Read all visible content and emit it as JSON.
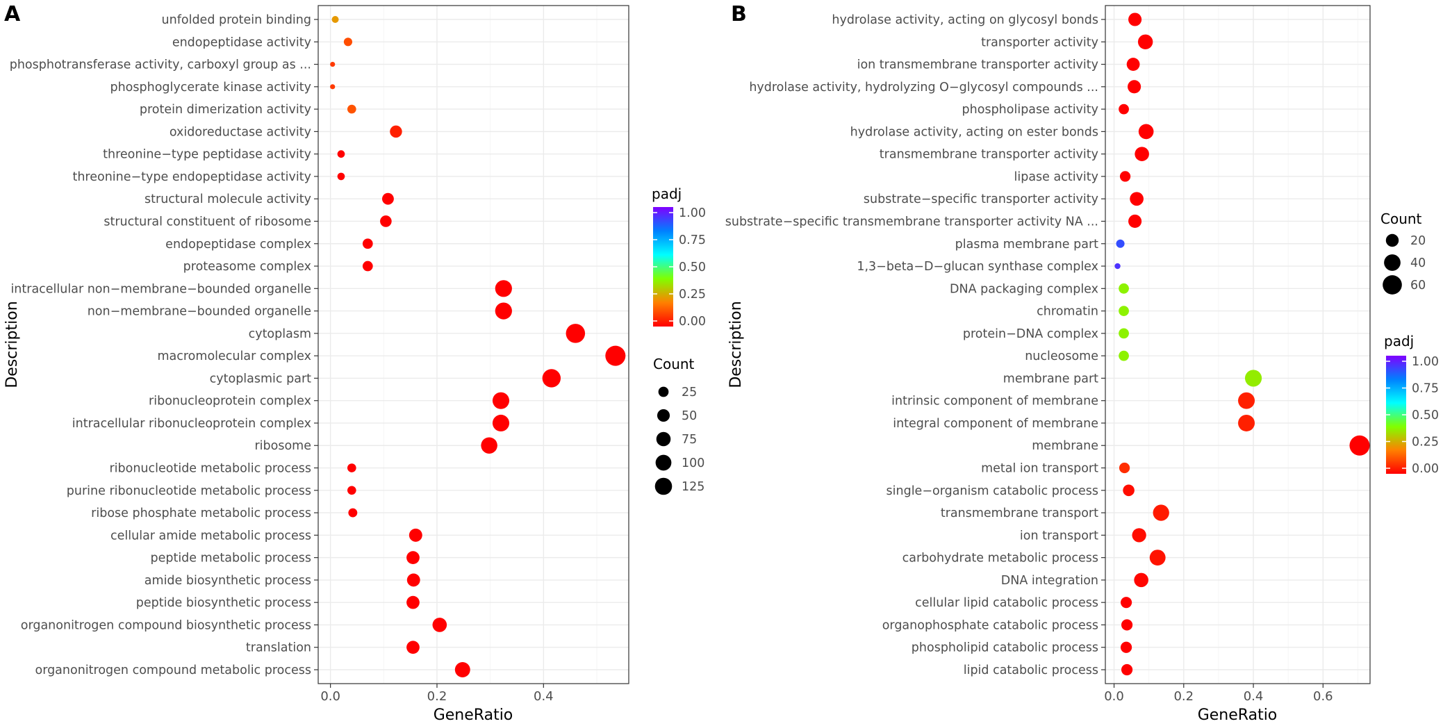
{
  "chart_data": [
    {
      "panel": "A",
      "type": "scatter",
      "xlabel": "GeneRatio",
      "ylabel": "Description",
      "xlim": [
        -0.023,
        0.56
      ],
      "xticks": [
        0.0,
        0.2,
        0.4
      ],
      "xtick_labels": [
        "0.0",
        "0.2",
        "0.4"
      ],
      "grid": true,
      "categories": [
        "unfolded protein binding",
        "endopeptidase activity",
        "phosphotransferase activity, carboxyl group as ...",
        "phosphoglycerate kinase activity",
        "protein dimerization activity",
        "oxidoreductase activity",
        "threonine−type peptidase activity",
        "threonine−type endopeptidase activity",
        "structural molecule activity",
        "structural constituent of ribosome",
        "endopeptidase complex",
        "proteasome complex",
        "intracellular non−membrane−bounded organelle",
        "non−membrane−bounded organelle",
        "cytoplasm",
        "macromolecular complex",
        "cytoplasmic part",
        "ribonucleoprotein complex",
        "intracellular ribonucleoprotein complex",
        "ribosome",
        "ribonucleotide metabolic process",
        "purine ribonucleotide metabolic process",
        "ribose phosphate metabolic process",
        "cellular amide metabolic process",
        "peptide metabolic process",
        "amide biosynthetic process",
        "peptide biosynthetic process",
        "organonitrogen compound biosynthetic process",
        "translation",
        "organonitrogen compound metabolic process"
      ],
      "gene_ratio": [
        0.009,
        0.033,
        0.004,
        0.004,
        0.04,
        0.123,
        0.02,
        0.02,
        0.108,
        0.104,
        0.07,
        0.07,
        0.325,
        0.325,
        0.46,
        0.535,
        0.415,
        0.32,
        0.32,
        0.298,
        0.04,
        0.04,
        0.042,
        0.16,
        0.155,
        0.156,
        0.155,
        0.205,
        0.155,
        0.248
      ],
      "count": [
        5,
        12,
        2,
        2,
        14,
        45,
        7,
        7,
        40,
        38,
        25,
        25,
        120,
        120,
        170,
        195,
        152,
        118,
        118,
        110,
        14,
        14,
        15,
        58,
        56,
        57,
        56,
        75,
        56,
        90
      ],
      "padj": [
        0.24,
        0.12,
        0.09,
        0.09,
        0.13,
        0.05,
        0.0,
        0.0,
        0.0,
        0.0,
        0.0,
        0.0,
        0.0,
        0.0,
        0.0,
        0.0,
        0.0,
        0.0,
        0.0,
        0.0,
        0.0,
        0.0,
        0.0,
        0.0,
        0.0,
        0.0,
        0.0,
        0.0,
        0.0,
        0.0
      ],
      "legend_padj": {
        "title": "padj",
        "tick_labels": [
          "1.00",
          "0.75",
          "0.50",
          "0.25",
          "0.00"
        ],
        "range": [
          0,
          1
        ]
      },
      "legend_count": {
        "title": "Count",
        "values": [
          25,
          50,
          75,
          100,
          125
        ],
        "tick_labels": [
          "25",
          "50",
          "75",
          "100",
          "125"
        ]
      },
      "size_range": [
        2,
        195
      ]
    },
    {
      "panel": "B",
      "type": "scatter",
      "xlabel": "GeneRatio",
      "ylabel": "Description",
      "xlim": [
        -0.025,
        0.735
      ],
      "xticks": [
        0.0,
        0.2,
        0.4,
        0.6
      ],
      "xtick_labels": [
        "0.0",
        "0.2",
        "0.4",
        "0.6"
      ],
      "grid": true,
      "categories": [
        "hydrolase activity, acting on glycosyl bonds",
        "transporter activity",
        "ion transmembrane transporter activity",
        "hydrolase activity, hydrolyzing O−glycosyl compounds ...",
        "phospholipase activity",
        "hydrolase activity, acting on ester bonds",
        "transmembrane transporter activity",
        "lipase activity",
        "substrate−specific transporter activity",
        "substrate−specific transmembrane transporter activity NA ...",
        "plasma membrane part",
        "1,3−beta−D−glucan synthase complex",
        "DNA packaging complex",
        "chromatin",
        "protein−DNA complex",
        "nucleosome",
        "membrane part",
        "intrinsic component of membrane",
        "integral component of membrane",
        "membrane",
        "metal ion transport",
        "single−organism catabolic process",
        "transmembrane transport",
        "ion transport",
        "carbohydrate metabolic process",
        "DNA integration",
        "cellular lipid catabolic process",
        "organophosphate catabolic process",
        "phospholipid catabolic process",
        "lipid catabolic process"
      ],
      "gene_ratio": [
        0.06,
        0.09,
        0.055,
        0.058,
        0.028,
        0.092,
        0.08,
        0.032,
        0.065,
        0.06,
        0.018,
        0.01,
        0.028,
        0.028,
        0.028,
        0.028,
        0.4,
        0.38,
        0.38,
        0.705,
        0.03,
        0.042,
        0.135,
        0.072,
        0.125,
        0.078,
        0.035,
        0.037,
        0.035,
        0.037
      ],
      "count": [
        22,
        30,
        21,
        22,
        11,
        31,
        27,
        12,
        24,
        22,
        7,
        5,
        11,
        11,
        11,
        11,
        42,
        41,
        41,
        68,
        12,
        15,
        38,
        26,
        36,
        27,
        14,
        14,
        14,
        14
      ],
      "padj": [
        0.0,
        0.0,
        0.0,
        0.0,
        0.0,
        0.0,
        0.0,
        0.0,
        0.0,
        0.0,
        0.88,
        0.92,
        0.38,
        0.38,
        0.38,
        0.38,
        0.37,
        0.05,
        0.05,
        0.0,
        0.07,
        0.02,
        0.04,
        0.02,
        0.03,
        0.01,
        0.0,
        0.0,
        0.0,
        0.0
      ],
      "legend_count": {
        "title": "Count",
        "values": [
          20,
          40,
          60
        ],
        "tick_labels": [
          "20",
          "40",
          "60"
        ]
      },
      "legend_padj": {
        "title": "padj",
        "tick_labels": [
          "1.00",
          "0.75",
          "0.50",
          "0.25",
          "0.00"
        ],
        "range": [
          0,
          1
        ]
      },
      "size_range": [
        5,
        68
      ]
    }
  ],
  "colors": {
    "panel_background": "#ffffff",
    "grid_major": "#ebebeb",
    "grid_minor": "#f5f5f5",
    "axis_border": "#333333",
    "gradient_stops": [
      "#ff0000",
      "#ff8000",
      "#80ff00",
      "#00ffff",
      "#0080ff",
      "#8000ff"
    ]
  }
}
